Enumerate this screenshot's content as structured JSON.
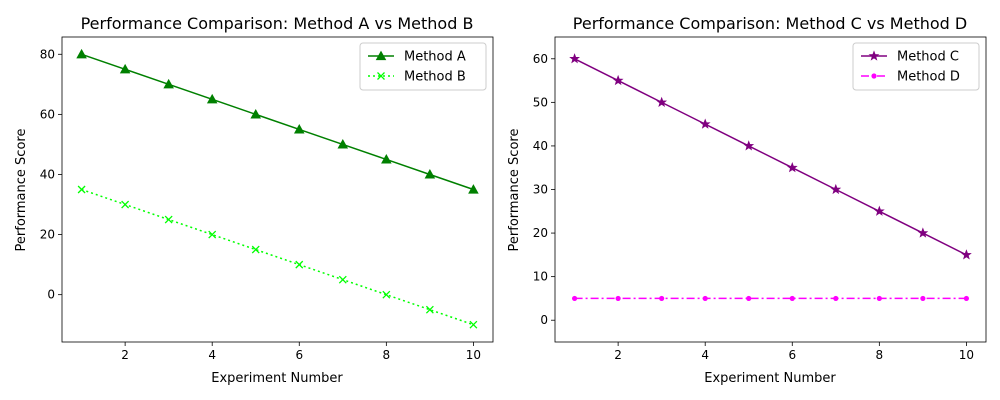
{
  "chart_data": [
    {
      "type": "line",
      "title": "Performance Comparison: Method A vs Method B",
      "xlabel": "Experiment Number",
      "ylabel": "Performance Score",
      "xlim": [
        0.55,
        10.45
      ],
      "ylim": [
        -15.75,
        85.75
      ],
      "xticks": [
        2,
        4,
        6,
        8,
        10
      ],
      "yticks": [
        0,
        20,
        40,
        60,
        80
      ],
      "grid": false,
      "legend_position": "upper right",
      "x": [
        1,
        2,
        3,
        4,
        5,
        6,
        7,
        8,
        9,
        10
      ],
      "series": [
        {
          "name": "Method A",
          "values": [
            80,
            75,
            70,
            65,
            60,
            55,
            50,
            45,
            40,
            35
          ],
          "color": "#008000",
          "line_style": "solid",
          "marker": "triangle"
        },
        {
          "name": "Method B",
          "values": [
            35,
            30,
            25,
            20,
            15,
            10,
            5,
            0,
            -5,
            -10
          ],
          "color": "#00ff00",
          "line_style": "dotted",
          "marker": "x"
        }
      ]
    },
    {
      "type": "line",
      "title": "Performance Comparison: Method C vs Method D",
      "xlabel": "Experiment Number",
      "ylabel": "Performance Score",
      "xlim": [
        0.55,
        10.45
      ],
      "ylim": [
        -5,
        65
      ],
      "xticks": [
        2,
        4,
        6,
        8,
        10
      ],
      "yticks": [
        0,
        10,
        20,
        30,
        40,
        50,
        60
      ],
      "grid": false,
      "legend_position": "upper right",
      "x": [
        1,
        2,
        3,
        4,
        5,
        6,
        7,
        8,
        9,
        10
      ],
      "series": [
        {
          "name": "Method C",
          "values": [
            60,
            55,
            50,
            45,
            40,
            35,
            30,
            25,
            20,
            15
          ],
          "color": "#800080",
          "line_style": "solid",
          "marker": "star"
        },
        {
          "name": "Method D",
          "values": [
            5,
            5,
            5,
            5,
            5,
            5,
            5,
            5,
            5,
            5
          ],
          "color": "#ff00ff",
          "line_style": "dashdot",
          "marker": "point"
        }
      ]
    }
  ]
}
